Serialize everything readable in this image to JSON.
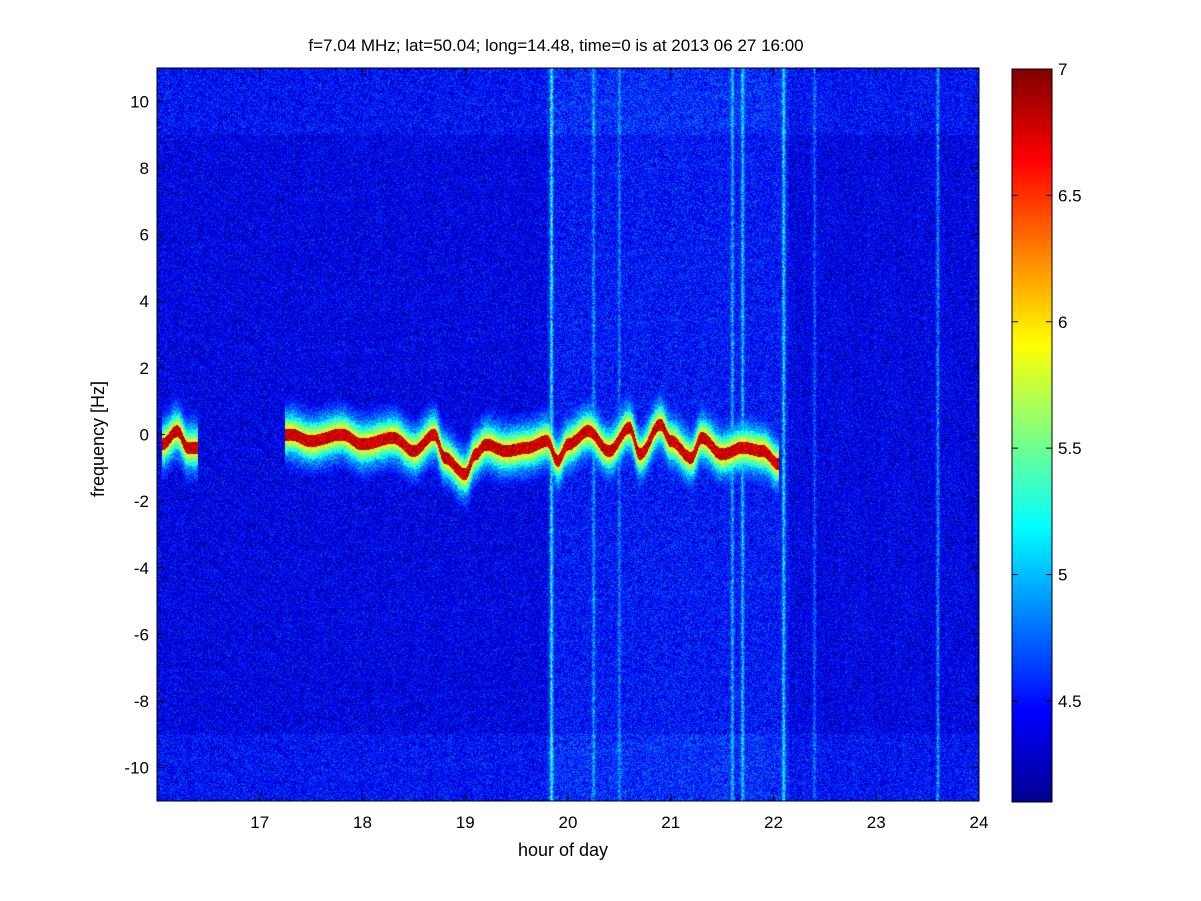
{
  "chart_data": {
    "type": "heatmap",
    "title": "f=7.04 MHz;  lat=50.04; long=14.48, time=0 is at 2013 06 27 16:00",
    "xlabel": "hour of day",
    "ylabel": "frequency [Hz]",
    "xlim": [
      16.0,
      24.0
    ],
    "ylim": [
      -11.0,
      11.0
    ],
    "x_ticks": [
      17,
      18,
      19,
      20,
      21,
      22,
      23,
      24
    ],
    "x_tick_labels": [
      "17",
      "18",
      "19",
      "20",
      "21",
      "22",
      "23",
      "24"
    ],
    "y_ticks": [
      10,
      8,
      6,
      4,
      2,
      0,
      -2,
      -4,
      -6,
      -8,
      -10
    ],
    "y_tick_labels": [
      "10",
      "8",
      "6",
      "4",
      "2",
      "0",
      "-2",
      "-4",
      "-6",
      "-8",
      "-10"
    ],
    "colormap": "jet",
    "colorbar": {
      "range": [
        4.1,
        7.0
      ],
      "ticks": [
        7,
        6.5,
        6,
        5.5,
        5,
        4.5
      ],
      "tick_labels": [
        "7",
        "6.5",
        "6",
        "5.5",
        "5",
        "4.5"
      ]
    },
    "background_level": 4.4,
    "trace": {
      "description_from_plot": "Doppler trace from about 17.3 to 22.1 h, near 0 Hz",
      "hours": [
        16.05,
        16.2,
        16.3,
        17.3,
        17.5,
        17.8,
        18.0,
        18.3,
        18.5,
        18.7,
        18.8,
        19.0,
        19.1,
        19.2,
        19.4,
        19.6,
        19.8,
        19.9,
        20.0,
        20.2,
        20.4,
        20.6,
        20.7,
        20.9,
        21.0,
        21.2,
        21.3,
        21.5,
        21.7,
        21.9,
        22.05
      ],
      "doppler_hz": [
        -0.3,
        0.1,
        -0.4,
        0.0,
        -0.2,
        0.0,
        -0.3,
        -0.1,
        -0.5,
        0.0,
        -0.7,
        -1.2,
        -0.6,
        -0.3,
        -0.5,
        -0.4,
        -0.2,
        -0.8,
        -0.3,
        0.1,
        -0.5,
        0.2,
        -0.6,
        0.3,
        -0.2,
        -0.7,
        -0.1,
        -0.6,
        -0.4,
        -0.5,
        -0.9
      ],
      "peak_level": 7.0
    },
    "vertical_streaks": [
      {
        "hour": 19.84,
        "level": 5.3
      },
      {
        "hour": 20.25,
        "level": 4.9
      },
      {
        "hour": 20.5,
        "level": 4.8
      },
      {
        "hour": 21.6,
        "level": 5.0
      },
      {
        "hour": 21.7,
        "level": 5.1
      },
      {
        "hour": 22.1,
        "level": 5.2
      },
      {
        "hour": 22.4,
        "level": 4.8
      },
      {
        "hour": 23.6,
        "level": 5.0
      }
    ]
  }
}
